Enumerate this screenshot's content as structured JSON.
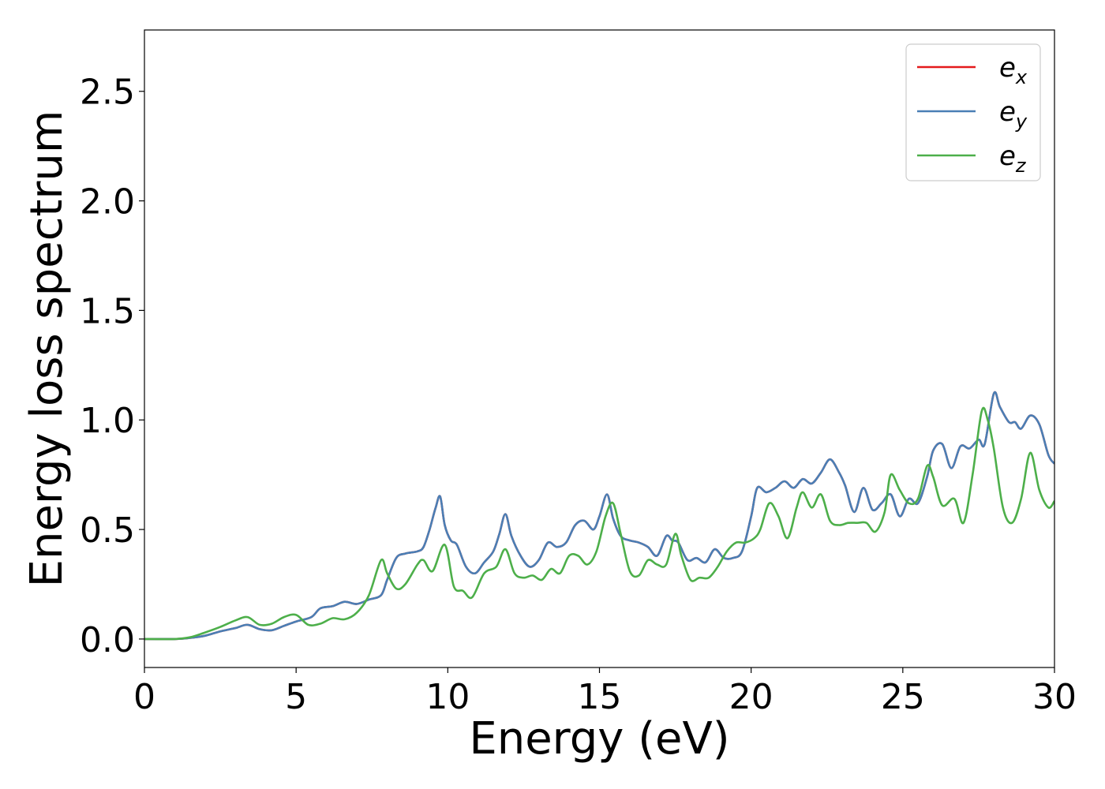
{
  "chart_data": {
    "type": "line",
    "title": "",
    "xlabel": "Energy (eV)",
    "ylabel": "Energy loss spectrum",
    "xlim": [
      0,
      30
    ],
    "ylim": [
      -0.13,
      2.78
    ],
    "xticks": [
      0,
      5,
      10,
      15,
      20,
      25,
      30
    ],
    "yticks": [
      0.0,
      0.5,
      1.0,
      1.5,
      2.0,
      2.5
    ],
    "xtick_labels": [
      "0",
      "5",
      "10",
      "15",
      "20",
      "25",
      "30"
    ],
    "ytick_labels": [
      "0.0",
      "0.5",
      "1.0",
      "1.5",
      "2.0",
      "2.5"
    ],
    "grid": false,
    "legend_position": "top-right",
    "series": [
      {
        "name": "e_x",
        "label_main": "e",
        "label_sub": "x",
        "color": "#e41a1c",
        "x": [
          0,
          1,
          1.5,
          2,
          2.5,
          3,
          3.4,
          3.8,
          4.2,
          4.6,
          5,
          5.5,
          5.8,
          6.2,
          6.6,
          7,
          7.4,
          7.8,
          8,
          8.3,
          8.6,
          9,
          9.2,
          9.4,
          9.6,
          9.75,
          9.9,
          10.1,
          10.3,
          10.6,
          10.9,
          11.2,
          11.5,
          11.7,
          11.9,
          12.1,
          12.4,
          12.7,
          13,
          13.3,
          13.6,
          13.9,
          14.2,
          14.5,
          14.8,
          15,
          15.25,
          15.45,
          15.7,
          16,
          16.3,
          16.6,
          16.9,
          17.2,
          17.4,
          17.6,
          17.9,
          18.2,
          18.5,
          18.8,
          19.1,
          19.4,
          19.7,
          20,
          20.2,
          20.5,
          20.8,
          21.1,
          21.4,
          21.7,
          22,
          22.3,
          22.6,
          22.9,
          23.1,
          23.4,
          23.7,
          24,
          24.3,
          24.6,
          24.9,
          25.2,
          25.5,
          25.8,
          26,
          26.3,
          26.6,
          26.9,
          27.2,
          27.5,
          27.7,
          28,
          28.2,
          28.5,
          28.7,
          28.9,
          29.2,
          29.5,
          29.8,
          30
        ],
        "y": [
          0,
          0,
          0.005,
          0.015,
          0.035,
          0.05,
          0.065,
          0.045,
          0.04,
          0.06,
          0.08,
          0.1,
          0.14,
          0.15,
          0.17,
          0.16,
          0.18,
          0.2,
          0.27,
          0.37,
          0.39,
          0.4,
          0.42,
          0.5,
          0.6,
          0.65,
          0.52,
          0.45,
          0.43,
          0.33,
          0.3,
          0.35,
          0.4,
          0.48,
          0.57,
          0.47,
          0.38,
          0.33,
          0.36,
          0.44,
          0.42,
          0.44,
          0.52,
          0.54,
          0.5,
          0.56,
          0.66,
          0.55,
          0.47,
          0.45,
          0.44,
          0.42,
          0.38,
          0.47,
          0.45,
          0.44,
          0.36,
          0.37,
          0.35,
          0.41,
          0.37,
          0.37,
          0.4,
          0.56,
          0.69,
          0.67,
          0.69,
          0.72,
          0.69,
          0.73,
          0.71,
          0.76,
          0.82,
          0.76,
          0.7,
          0.58,
          0.69,
          0.59,
          0.62,
          0.66,
          0.56,
          0.64,
          0.62,
          0.74,
          0.86,
          0.89,
          0.78,
          0.88,
          0.87,
          0.91,
          0.89,
          1.12,
          1.06,
          0.99,
          0.99,
          0.96,
          1.02,
          0.98,
          0.84,
          0.8
        ]
      },
      {
        "name": "e_y",
        "label_main": "e",
        "label_sub": "y",
        "color": "#4a7fb5",
        "x": [
          0,
          1,
          1.5,
          2,
          2.5,
          3,
          3.4,
          3.8,
          4.2,
          4.6,
          5,
          5.5,
          5.8,
          6.2,
          6.6,
          7,
          7.4,
          7.8,
          8,
          8.3,
          8.6,
          9,
          9.2,
          9.4,
          9.6,
          9.75,
          9.9,
          10.1,
          10.3,
          10.6,
          10.9,
          11.2,
          11.5,
          11.7,
          11.9,
          12.1,
          12.4,
          12.7,
          13,
          13.3,
          13.6,
          13.9,
          14.2,
          14.5,
          14.8,
          15,
          15.25,
          15.45,
          15.7,
          16,
          16.3,
          16.6,
          16.9,
          17.2,
          17.4,
          17.6,
          17.9,
          18.2,
          18.5,
          18.8,
          19.1,
          19.4,
          19.7,
          20,
          20.2,
          20.5,
          20.8,
          21.1,
          21.4,
          21.7,
          22,
          22.3,
          22.6,
          22.9,
          23.1,
          23.4,
          23.7,
          24,
          24.3,
          24.6,
          24.9,
          25.2,
          25.5,
          25.8,
          26,
          26.3,
          26.6,
          26.9,
          27.2,
          27.5,
          27.7,
          28,
          28.2,
          28.5,
          28.7,
          28.9,
          29.2,
          29.5,
          29.8,
          30
        ],
        "y": [
          0,
          0,
          0.005,
          0.015,
          0.035,
          0.05,
          0.065,
          0.045,
          0.04,
          0.06,
          0.08,
          0.1,
          0.14,
          0.15,
          0.17,
          0.16,
          0.18,
          0.2,
          0.27,
          0.37,
          0.39,
          0.4,
          0.42,
          0.5,
          0.6,
          0.65,
          0.52,
          0.45,
          0.43,
          0.33,
          0.3,
          0.35,
          0.4,
          0.48,
          0.57,
          0.47,
          0.38,
          0.33,
          0.36,
          0.44,
          0.42,
          0.44,
          0.52,
          0.54,
          0.5,
          0.56,
          0.66,
          0.55,
          0.47,
          0.45,
          0.44,
          0.42,
          0.38,
          0.47,
          0.45,
          0.44,
          0.36,
          0.37,
          0.35,
          0.41,
          0.37,
          0.37,
          0.4,
          0.56,
          0.69,
          0.67,
          0.69,
          0.72,
          0.69,
          0.73,
          0.71,
          0.76,
          0.82,
          0.76,
          0.7,
          0.58,
          0.69,
          0.59,
          0.62,
          0.66,
          0.56,
          0.64,
          0.62,
          0.74,
          0.86,
          0.89,
          0.78,
          0.88,
          0.87,
          0.91,
          0.89,
          1.12,
          1.06,
          0.99,
          0.99,
          0.96,
          1.02,
          0.98,
          0.84,
          0.8
        ]
      },
      {
        "name": "e_z",
        "label_main": "e",
        "label_sub": "z",
        "color": "#4daf4a",
        "x": [
          0,
          1,
          1.5,
          2,
          2.5,
          3,
          3.4,
          3.8,
          4.2,
          4.6,
          5,
          5.4,
          5.8,
          6.2,
          6.6,
          7,
          7.4,
          7.8,
          8,
          8.3,
          8.6,
          9,
          9.2,
          9.5,
          9.9,
          10.2,
          10.5,
          10.8,
          11.2,
          11.6,
          11.9,
          12.2,
          12.5,
          12.8,
          13.1,
          13.4,
          13.7,
          14,
          14.3,
          14.6,
          14.9,
          15.2,
          15.45,
          15.7,
          16,
          16.3,
          16.6,
          16.9,
          17.2,
          17.5,
          17.7,
          18,
          18.3,
          18.6,
          18.9,
          19.2,
          19.5,
          19.8,
          20.1,
          20.3,
          20.6,
          20.9,
          21.2,
          21.5,
          21.7,
          22,
          22.3,
          22.6,
          22.9,
          23.2,
          23.5,
          23.8,
          24.1,
          24.4,
          24.6,
          24.9,
          25.2,
          25.5,
          25.8,
          26,
          26.3,
          26.7,
          27,
          27.3,
          27.6,
          27.8,
          28,
          28.3,
          28.6,
          28.9,
          29.2,
          29.5,
          29.8,
          30
        ],
        "y": [
          0,
          0,
          0.008,
          0.03,
          0.055,
          0.085,
          0.1,
          0.065,
          0.07,
          0.1,
          0.11,
          0.065,
          0.07,
          0.095,
          0.09,
          0.12,
          0.2,
          0.36,
          0.3,
          0.23,
          0.25,
          0.34,
          0.36,
          0.31,
          0.43,
          0.24,
          0.22,
          0.19,
          0.3,
          0.33,
          0.41,
          0.3,
          0.28,
          0.29,
          0.27,
          0.32,
          0.3,
          0.38,
          0.38,
          0.34,
          0.4,
          0.56,
          0.62,
          0.48,
          0.31,
          0.29,
          0.36,
          0.34,
          0.34,
          0.48,
          0.38,
          0.27,
          0.28,
          0.28,
          0.33,
          0.4,
          0.44,
          0.44,
          0.46,
          0.5,
          0.62,
          0.56,
          0.46,
          0.6,
          0.67,
          0.6,
          0.66,
          0.54,
          0.52,
          0.53,
          0.53,
          0.53,
          0.49,
          0.58,
          0.75,
          0.68,
          0.62,
          0.64,
          0.79,
          0.74,
          0.61,
          0.64,
          0.53,
          0.75,
          1.04,
          1.0,
          0.87,
          0.6,
          0.53,
          0.64,
          0.85,
          0.68,
          0.6,
          0.63
        ]
      }
    ]
  }
}
